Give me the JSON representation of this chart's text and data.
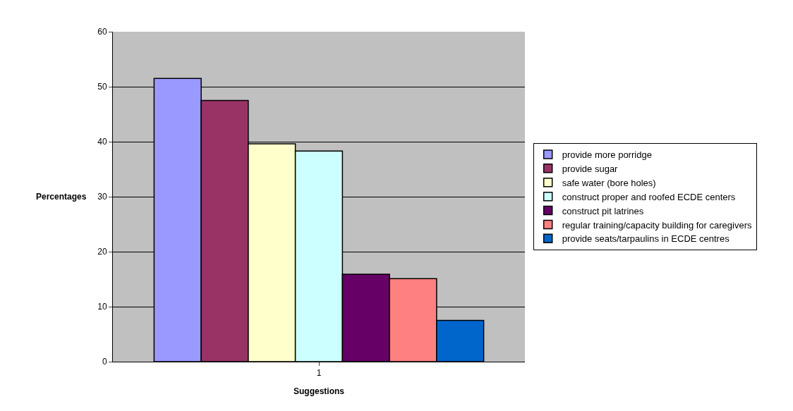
{
  "chart_data": {
    "type": "bar",
    "xlabel": "Suggestions",
    "ylabel": "Percentages",
    "categories": [
      "1"
    ],
    "series": [
      {
        "name": "provide more porridge",
        "color": "#9999ff",
        "values": [
          51.5
        ]
      },
      {
        "name": "provide sugar",
        "color": "#993366",
        "values": [
          47.5
        ]
      },
      {
        "name": "safe water (bore holes)",
        "color": "#ffffcc",
        "values": [
          39.6
        ]
      },
      {
        "name": "construct proper and roofed ECDE centers",
        "color": "#ccffff",
        "values": [
          38.3
        ]
      },
      {
        "name": "construct pit latrines",
        "color": "#660066",
        "values": [
          15.9
        ]
      },
      {
        "name": "regular training/capacity building for caregivers",
        "color": "#ff8080",
        "values": [
          15.1
        ]
      },
      {
        "name": "provide seats/tarpaulins in ECDE centres",
        "color": "#0066cc",
        "values": [
          7.5
        ]
      }
    ],
    "ylim": [
      0,
      60
    ],
    "yticks": [
      0,
      10,
      20,
      30,
      40,
      50,
      60
    ],
    "grid": "y",
    "legend": "right"
  }
}
